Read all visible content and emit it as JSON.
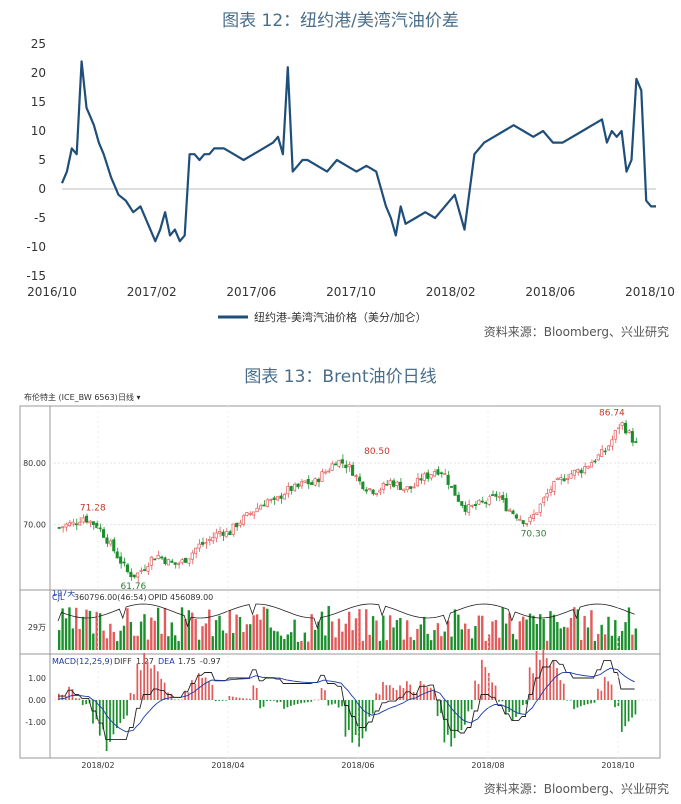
{
  "chart_data": [
    {
      "type": "line",
      "title": "图表 12：纽约港/美湾汽油价差",
      "ylim": [
        -15,
        25
      ],
      "yticks": [
        25,
        20,
        15,
        10,
        5,
        0,
        -5,
        -10,
        -15
      ],
      "xtick_labels": [
        "2016/10",
        "2017/02",
        "2017/06",
        "2017/10",
        "2018/02",
        "2018/06",
        "2018/10"
      ],
      "legend": "top-bottom",
      "series": [
        {
          "name": "纽约港-美湾汽油价格（美分/加仑）",
          "color": "#1f4e79",
          "x_months": [
            0,
            0.2,
            0.4,
            0.6,
            0.8,
            1.0,
            1.1,
            1.3,
            1.5,
            1.7,
            2.0,
            2.3,
            2.6,
            2.9,
            3.2,
            3.5,
            3.8,
            4.0,
            4.2,
            4.4,
            4.6,
            4.8,
            5.0,
            5.2,
            5.4,
            5.6,
            5.8,
            6.0,
            6.2,
            6.6,
            7.0,
            7.4,
            7.8,
            8.2,
            8.6,
            8.8,
            9.0,
            9.2,
            9.4,
            9.6,
            9.8,
            10.0,
            10.4,
            10.8,
            11.2,
            11.6,
            12.0,
            12.4,
            12.8,
            13.2,
            13.4,
            13.6,
            13.8,
            14.0,
            14.4,
            14.8,
            15.2,
            15.6,
            16.0,
            16.4,
            16.8,
            17.2,
            17.6,
            18.0,
            18.4,
            18.8,
            19.2,
            19.6,
            20.0,
            20.4,
            20.8,
            21.2,
            21.6,
            22.0,
            22.2,
            22.4,
            22.6,
            22.8,
            23.0,
            23.2,
            23.4,
            23.6,
            23.8,
            24.0,
            24.2
          ],
          "values": [
            1,
            3,
            7,
            6,
            22,
            14,
            13,
            11,
            8,
            6,
            2,
            -1,
            -2,
            -4,
            -3,
            -6,
            -9,
            -7,
            -4,
            -8,
            -7,
            -9,
            -8,
            6,
            6,
            5,
            6,
            6,
            7,
            7,
            6,
            5,
            6,
            7,
            8,
            9,
            6,
            21,
            3,
            4,
            5,
            5,
            4,
            3,
            5,
            4,
            3,
            4,
            3,
            -3,
            -5,
            -8,
            -3,
            -6,
            -5,
            -4,
            -5,
            -3,
            -1,
            -7,
            6,
            8,
            9,
            10,
            11,
            10,
            9,
            10,
            8,
            8,
            9,
            10,
            11,
            12,
            8,
            10,
            9,
            10,
            3,
            5,
            19,
            17,
            -2,
            -3,
            -3
          ]
        }
      ]
    },
    {
      "type": "candlestick",
      "title": "图表 13：Brent油价日线",
      "header": {
        "instrument": "布伦特主 (ICE_BW 6563)",
        "period": "日线"
      },
      "price_ylim": [
        60,
        88
      ],
      "price_ticks": [
        80.0,
        70.0
      ],
      "annotations": [
        {
          "label": "71.28",
          "value": 71.28,
          "color": "#c0392b"
        },
        {
          "label": "61.76",
          "value": 61.76,
          "color": "#2e7d32"
        },
        {
          "label": "80.50",
          "value": 80.5,
          "color": "#c0392b"
        },
        {
          "label": "70.30",
          "value": 70.3,
          "color": "#2e7d32"
        },
        {
          "label": "86.74",
          "value": 86.74,
          "color": "#c0392b"
        }
      ],
      "days_label": "197天",
      "close_path": [
        69.5,
        70,
        70.2,
        71.28,
        70.5,
        69.8,
        68,
        66,
        64,
        62,
        61.76,
        63,
        64.5,
        65,
        64,
        63.5,
        64,
        65,
        66.5,
        67,
        68,
        69,
        68.5,
        70,
        71,
        72,
        73,
        74,
        73.5,
        75,
        75.8,
        76,
        77,
        76.5,
        78,
        79,
        80.5,
        80,
        79,
        77,
        76,
        75.5,
        76,
        77,
        76.5,
        75.8,
        76,
        77.5,
        78,
        79,
        78.5,
        76,
        74,
        72.5,
        73,
        73.5,
        74,
        75,
        73,
        72,
        71,
        70.3,
        72,
        74,
        76,
        77,
        78,
        78.5,
        79,
        80,
        81,
        82,
        84,
        86.74,
        85,
        83
      ],
      "volume": {
        "label": "CJL",
        "value": "360796.00(46:54)",
        "opid_label": "OPID",
        "opid_value": "456089.00",
        "tick": "29万"
      },
      "macd": {
        "label": "MACD(12,26,9)",
        "diff_label": "DIFF",
        "diff": "1.27",
        "dea_label": "DEA",
        "dea": "1.75",
        "hist": "-0.97",
        "ticks": [
          "1.00",
          "0.00",
          "-1.00"
        ]
      },
      "xtick_labels": [
        "2018/02",
        "2018/04",
        "2018/06",
        "2018/08",
        "2018/10"
      ]
    }
  ],
  "sources": [
    "资料来源：Bloomberg、兴业研究",
    "资料来源：Bloomberg、兴业研究"
  ]
}
